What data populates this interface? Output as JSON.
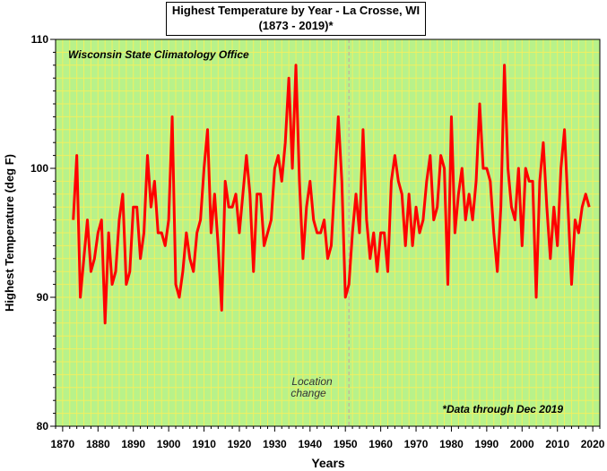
{
  "chart_data": {
    "type": "line",
    "title": "Highest Temperature by Year - La Crosse, WI",
    "subtitle": "(1873 - 2019)*",
    "xlabel": "Years",
    "ylabel": "Highest Temperature (deg F)",
    "xlim": [
      1868,
      2022
    ],
    "ylim": [
      80,
      110
    ],
    "x_ticks": [
      1870,
      1880,
      1890,
      1900,
      1910,
      1920,
      1930,
      1940,
      1950,
      1960,
      1970,
      1980,
      1990,
      2000,
      2010,
      2020
    ],
    "y_ticks": [
      80,
      90,
      100,
      110
    ],
    "grid": true,
    "background_color": "#b8f28a",
    "grid_color": "#f0f060",
    "line_color": "#ff0000",
    "source_label": "Wisconsin State Climatology Office",
    "annotations": [
      {
        "text": "Location",
        "x": 1950
      },
      {
        "text": "change",
        "x": 1950
      }
    ],
    "footnote": "*Data through Dec 2019",
    "vline_x": 1951,
    "x": [
      1873,
      1874,
      1875,
      1876,
      1877,
      1878,
      1879,
      1880,
      1881,
      1882,
      1883,
      1884,
      1885,
      1886,
      1887,
      1888,
      1889,
      1890,
      1891,
      1892,
      1893,
      1894,
      1895,
      1896,
      1897,
      1898,
      1899,
      1900,
      1901,
      1902,
      1903,
      1904,
      1905,
      1906,
      1907,
      1908,
      1909,
      1910,
      1911,
      1912,
      1913,
      1914,
      1915,
      1916,
      1917,
      1918,
      1919,
      1920,
      1921,
      1922,
      1923,
      1924,
      1925,
      1926,
      1927,
      1928,
      1929,
      1930,
      1931,
      1932,
      1933,
      1934,
      1935,
      1936,
      1937,
      1938,
      1939,
      1940,
      1941,
      1942,
      1943,
      1944,
      1945,
      1946,
      1947,
      1948,
      1949,
      1950,
      1951,
      1952,
      1953,
      1954,
      1955,
      1956,
      1957,
      1958,
      1959,
      1960,
      1961,
      1962,
      1963,
      1964,
      1965,
      1966,
      1967,
      1968,
      1969,
      1970,
      1971,
      1972,
      1973,
      1974,
      1975,
      1976,
      1977,
      1978,
      1979,
      1980,
      1981,
      1982,
      1983,
      1984,
      1985,
      1986,
      1987,
      1988,
      1989,
      1990,
      1991,
      1992,
      1993,
      1994,
      1995,
      1996,
      1997,
      1998,
      1999,
      2000,
      2001,
      2002,
      2003,
      2004,
      2005,
      2006,
      2007,
      2008,
      2009,
      2010,
      2011,
      2012,
      2013,
      2014,
      2015,
      2016,
      2017,
      2018,
      2019
    ],
    "values": [
      96,
      101,
      90,
      93,
      96,
      92,
      93,
      95,
      96,
      88,
      95,
      91,
      92,
      96,
      98,
      91,
      92,
      97,
      97,
      93,
      95,
      101,
      97,
      99,
      95,
      95,
      94,
      96,
      104,
      91,
      90,
      92,
      95,
      93,
      92,
      95,
      96,
      100,
      103,
      95,
      98,
      94,
      89,
      99,
      97,
      97,
      98,
      95,
      98,
      101,
      98,
      92,
      98,
      98,
      94,
      95,
      96,
      100,
      101,
      99,
      102,
      107,
      100,
      108,
      99,
      93,
      97,
      99,
      96,
      95,
      95,
      96,
      93,
      94,
      99,
      104,
      99,
      90,
      91,
      95,
      98,
      95,
      103,
      96,
      93,
      95,
      92,
      95,
      95,
      92,
      99,
      101,
      99,
      98,
      94,
      98,
      94,
      97,
      95,
      96,
      99,
      101,
      96,
      97,
      101,
      100,
      91,
      104,
      95,
      98,
      100,
      96,
      98,
      96,
      99,
      105,
      100,
      100,
      99,
      95,
      92,
      97,
      108,
      100,
      97,
      96,
      100,
      94,
      100,
      99,
      99,
      90,
      99,
      102,
      97,
      93,
      97,
      94,
      100,
      103,
      97,
      91,
      96,
      95,
      97,
      98,
      97
    ]
  }
}
